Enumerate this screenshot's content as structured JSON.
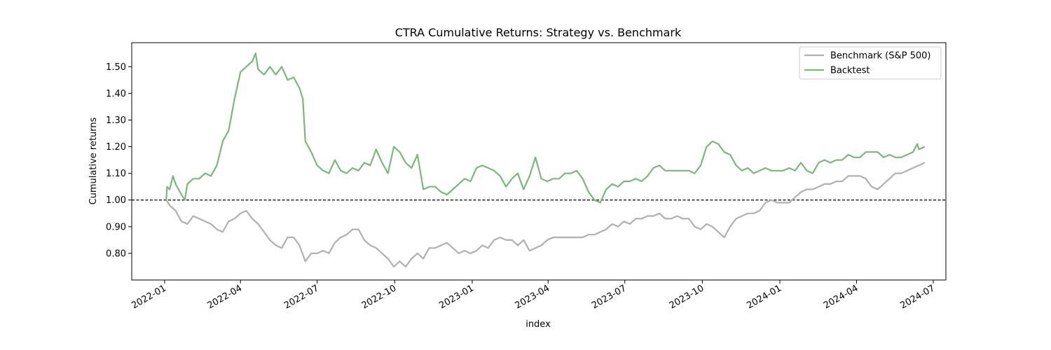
{
  "chart_data": {
    "type": "line",
    "title": "CTRA Cumulative Returns: Strategy vs. Benchmark",
    "xlabel": "index",
    "ylabel": "Cumulative returns",
    "xlim": [
      "2021-11-23",
      "2024-07-16"
    ],
    "ylim": [
      0.7,
      1.59
    ],
    "x_ticks": [
      "2022-01",
      "2022-04",
      "2022-07",
      "2022-10",
      "2023-01",
      "2023-04",
      "2023-07",
      "2023-10",
      "2024-01",
      "2024-04",
      "2024-07"
    ],
    "y_ticks": [
      0.8,
      0.9,
      1.0,
      1.1,
      1.2,
      1.3,
      1.4,
      1.5
    ],
    "y_tick_labels": [
      "0.80",
      "0.90",
      "1.00",
      "1.10",
      "1.20",
      "1.30",
      "1.40",
      "1.50"
    ],
    "grid": false,
    "legend_position": "upper-right",
    "reference_line": {
      "y": 1.0,
      "style": "dashed",
      "color": "#000000"
    },
    "series": [
      {
        "name": "Benchmark (S&P 500)",
        "color": "#b0b0b0",
        "points": [
          [
            "2022-01-03",
            1.0
          ],
          [
            "2022-01-07",
            0.98
          ],
          [
            "2022-01-14",
            0.96
          ],
          [
            "2022-01-21",
            0.92
          ],
          [
            "2022-01-28",
            0.91
          ],
          [
            "2022-02-04",
            0.94
          ],
          [
            "2022-02-11",
            0.93
          ],
          [
            "2022-02-18",
            0.92
          ],
          [
            "2022-02-25",
            0.91
          ],
          [
            "2022-03-04",
            0.89
          ],
          [
            "2022-03-11",
            0.88
          ],
          [
            "2022-03-18",
            0.92
          ],
          [
            "2022-03-25",
            0.93
          ],
          [
            "2022-04-01",
            0.95
          ],
          [
            "2022-04-08",
            0.96
          ],
          [
            "2022-04-15",
            0.93
          ],
          [
            "2022-04-22",
            0.91
          ],
          [
            "2022-04-29",
            0.88
          ],
          [
            "2022-05-06",
            0.85
          ],
          [
            "2022-05-13",
            0.83
          ],
          [
            "2022-05-20",
            0.82
          ],
          [
            "2022-05-27",
            0.86
          ],
          [
            "2022-06-03",
            0.86
          ],
          [
            "2022-06-10",
            0.83
          ],
          [
            "2022-06-17",
            0.77
          ],
          [
            "2022-06-24",
            0.8
          ],
          [
            "2022-07-01",
            0.8
          ],
          [
            "2022-07-08",
            0.81
          ],
          [
            "2022-07-15",
            0.8
          ],
          [
            "2022-07-22",
            0.84
          ],
          [
            "2022-07-29",
            0.86
          ],
          [
            "2022-08-05",
            0.87
          ],
          [
            "2022-08-12",
            0.89
          ],
          [
            "2022-08-19",
            0.89
          ],
          [
            "2022-08-26",
            0.85
          ],
          [
            "2022-09-02",
            0.83
          ],
          [
            "2022-09-09",
            0.82
          ],
          [
            "2022-09-16",
            0.8
          ],
          [
            "2022-09-23",
            0.78
          ],
          [
            "2022-09-30",
            0.75
          ],
          [
            "2022-10-07",
            0.77
          ],
          [
            "2022-10-14",
            0.75
          ],
          [
            "2022-10-21",
            0.78
          ],
          [
            "2022-10-28",
            0.8
          ],
          [
            "2022-11-04",
            0.78
          ],
          [
            "2022-11-11",
            0.82
          ],
          [
            "2022-11-18",
            0.82
          ],
          [
            "2022-11-25",
            0.83
          ],
          [
            "2022-12-02",
            0.84
          ],
          [
            "2022-12-09",
            0.82
          ],
          [
            "2022-12-16",
            0.8
          ],
          [
            "2022-12-23",
            0.81
          ],
          [
            "2022-12-30",
            0.8
          ],
          [
            "2023-01-06",
            0.81
          ],
          [
            "2023-01-13",
            0.83
          ],
          [
            "2023-01-20",
            0.82
          ],
          [
            "2023-01-27",
            0.85
          ],
          [
            "2023-02-03",
            0.86
          ],
          [
            "2023-02-10",
            0.85
          ],
          [
            "2023-02-17",
            0.85
          ],
          [
            "2023-02-24",
            0.83
          ],
          [
            "2023-03-03",
            0.85
          ],
          [
            "2023-03-10",
            0.81
          ],
          [
            "2023-03-17",
            0.82
          ],
          [
            "2023-03-24",
            0.83
          ],
          [
            "2023-03-31",
            0.85
          ],
          [
            "2023-04-07",
            0.86
          ],
          [
            "2023-04-14",
            0.86
          ],
          [
            "2023-04-21",
            0.86
          ],
          [
            "2023-04-28",
            0.86
          ],
          [
            "2023-05-05",
            0.86
          ],
          [
            "2023-05-12",
            0.86
          ],
          [
            "2023-05-19",
            0.87
          ],
          [
            "2023-05-26",
            0.87
          ],
          [
            "2023-06-02",
            0.88
          ],
          [
            "2023-06-09",
            0.89
          ],
          [
            "2023-06-16",
            0.91
          ],
          [
            "2023-06-23",
            0.9
          ],
          [
            "2023-06-30",
            0.92
          ],
          [
            "2023-07-07",
            0.91
          ],
          [
            "2023-07-14",
            0.93
          ],
          [
            "2023-07-21",
            0.93
          ],
          [
            "2023-07-28",
            0.94
          ],
          [
            "2023-08-04",
            0.94
          ],
          [
            "2023-08-11",
            0.95
          ],
          [
            "2023-08-18",
            0.93
          ],
          [
            "2023-08-25",
            0.93
          ],
          [
            "2023-09-01",
            0.94
          ],
          [
            "2023-09-08",
            0.93
          ],
          [
            "2023-09-15",
            0.93
          ],
          [
            "2023-09-22",
            0.9
          ],
          [
            "2023-09-29",
            0.89
          ],
          [
            "2023-10-06",
            0.91
          ],
          [
            "2023-10-13",
            0.9
          ],
          [
            "2023-10-20",
            0.88
          ],
          [
            "2023-10-27",
            0.86
          ],
          [
            "2023-11-03",
            0.9
          ],
          [
            "2023-11-10",
            0.93
          ],
          [
            "2023-11-17",
            0.94
          ],
          [
            "2023-11-24",
            0.95
          ],
          [
            "2023-12-01",
            0.95
          ],
          [
            "2023-12-08",
            0.96
          ],
          [
            "2023-12-15",
            0.99
          ],
          [
            "2023-12-22",
            1.0
          ],
          [
            "2023-12-29",
            0.99
          ],
          [
            "2024-01-05",
            0.99
          ],
          [
            "2024-01-12",
            0.99
          ],
          [
            "2024-01-19",
            1.01
          ],
          [
            "2024-01-26",
            1.03
          ],
          [
            "2024-02-02",
            1.04
          ],
          [
            "2024-02-09",
            1.04
          ],
          [
            "2024-02-16",
            1.05
          ],
          [
            "2024-02-23",
            1.06
          ],
          [
            "2024-03-01",
            1.06
          ],
          [
            "2024-03-08",
            1.07
          ],
          [
            "2024-03-15",
            1.07
          ],
          [
            "2024-03-22",
            1.09
          ],
          [
            "2024-03-29",
            1.09
          ],
          [
            "2024-04-05",
            1.09
          ],
          [
            "2024-04-12",
            1.08
          ],
          [
            "2024-04-19",
            1.05
          ],
          [
            "2024-04-26",
            1.04
          ],
          [
            "2024-05-03",
            1.06
          ],
          [
            "2024-05-10",
            1.08
          ],
          [
            "2024-05-17",
            1.1
          ],
          [
            "2024-05-24",
            1.1
          ],
          [
            "2024-05-31",
            1.11
          ],
          [
            "2024-06-07",
            1.12
          ],
          [
            "2024-06-14",
            1.13
          ],
          [
            "2024-06-21",
            1.14
          ]
        ]
      },
      {
        "name": "Backtest",
        "color": "#7ab87a",
        "points": [
          [
            "2022-01-03",
            1.0
          ],
          [
            "2022-01-04",
            1.05
          ],
          [
            "2022-01-07",
            1.04
          ],
          [
            "2022-01-11",
            1.09
          ],
          [
            "2022-01-14",
            1.06
          ],
          [
            "2022-01-21",
            1.02
          ],
          [
            "2022-01-25",
            1.0
          ],
          [
            "2022-01-28",
            1.06
          ],
          [
            "2022-02-04",
            1.08
          ],
          [
            "2022-02-11",
            1.08
          ],
          [
            "2022-02-18",
            1.1
          ],
          [
            "2022-02-25",
            1.09
          ],
          [
            "2022-03-04",
            1.13
          ],
          [
            "2022-03-11",
            1.22
          ],
          [
            "2022-03-18",
            1.26
          ],
          [
            "2022-03-25",
            1.38
          ],
          [
            "2022-04-01",
            1.48
          ],
          [
            "2022-04-08",
            1.5
          ],
          [
            "2022-04-15",
            1.52
          ],
          [
            "2022-04-19",
            1.55
          ],
          [
            "2022-04-22",
            1.49
          ],
          [
            "2022-04-29",
            1.47
          ],
          [
            "2022-05-06",
            1.5
          ],
          [
            "2022-05-13",
            1.47
          ],
          [
            "2022-05-20",
            1.5
          ],
          [
            "2022-05-27",
            1.45
          ],
          [
            "2022-06-03",
            1.46
          ],
          [
            "2022-06-10",
            1.42
          ],
          [
            "2022-06-14",
            1.38
          ],
          [
            "2022-06-17",
            1.22
          ],
          [
            "2022-06-24",
            1.18
          ],
          [
            "2022-07-01",
            1.13
          ],
          [
            "2022-07-08",
            1.11
          ],
          [
            "2022-07-15",
            1.1
          ],
          [
            "2022-07-22",
            1.15
          ],
          [
            "2022-07-29",
            1.11
          ],
          [
            "2022-08-05",
            1.1
          ],
          [
            "2022-08-12",
            1.12
          ],
          [
            "2022-08-19",
            1.11
          ],
          [
            "2022-08-26",
            1.14
          ],
          [
            "2022-09-02",
            1.13
          ],
          [
            "2022-09-09",
            1.19
          ],
          [
            "2022-09-16",
            1.14
          ],
          [
            "2022-09-23",
            1.1
          ],
          [
            "2022-09-30",
            1.2
          ],
          [
            "2022-10-07",
            1.18
          ],
          [
            "2022-10-14",
            1.14
          ],
          [
            "2022-10-21",
            1.12
          ],
          [
            "2022-10-28",
            1.17
          ],
          [
            "2022-11-04",
            1.04
          ],
          [
            "2022-11-11",
            1.05
          ],
          [
            "2022-11-18",
            1.05
          ],
          [
            "2022-11-25",
            1.03
          ],
          [
            "2022-12-02",
            1.02
          ],
          [
            "2022-12-09",
            1.04
          ],
          [
            "2022-12-16",
            1.06
          ],
          [
            "2022-12-23",
            1.08
          ],
          [
            "2022-12-30",
            1.07
          ],
          [
            "2023-01-06",
            1.12
          ],
          [
            "2023-01-13",
            1.13
          ],
          [
            "2023-01-20",
            1.12
          ],
          [
            "2023-01-27",
            1.11
          ],
          [
            "2023-02-03",
            1.09
          ],
          [
            "2023-02-10",
            1.05
          ],
          [
            "2023-02-17",
            1.08
          ],
          [
            "2023-02-24",
            1.1
          ],
          [
            "2023-03-03",
            1.04
          ],
          [
            "2023-03-10",
            1.09
          ],
          [
            "2023-03-17",
            1.16
          ],
          [
            "2023-03-24",
            1.08
          ],
          [
            "2023-03-31",
            1.07
          ],
          [
            "2023-04-07",
            1.08
          ],
          [
            "2023-04-14",
            1.08
          ],
          [
            "2023-04-21",
            1.1
          ],
          [
            "2023-04-28",
            1.1
          ],
          [
            "2023-05-05",
            1.11
          ],
          [
            "2023-05-12",
            1.08
          ],
          [
            "2023-05-19",
            1.03
          ],
          [
            "2023-05-26",
            1.0
          ],
          [
            "2023-06-02",
            0.99
          ],
          [
            "2023-06-09",
            1.04
          ],
          [
            "2023-06-16",
            1.06
          ],
          [
            "2023-06-23",
            1.05
          ],
          [
            "2023-06-30",
            1.07
          ],
          [
            "2023-07-07",
            1.07
          ],
          [
            "2023-07-14",
            1.08
          ],
          [
            "2023-07-21",
            1.07
          ],
          [
            "2023-07-28",
            1.09
          ],
          [
            "2023-08-04",
            1.12
          ],
          [
            "2023-08-11",
            1.13
          ],
          [
            "2023-08-18",
            1.11
          ],
          [
            "2023-08-25",
            1.11
          ],
          [
            "2023-09-01",
            1.11
          ],
          [
            "2023-09-08",
            1.11
          ],
          [
            "2023-09-15",
            1.11
          ],
          [
            "2023-09-22",
            1.1
          ],
          [
            "2023-09-29",
            1.13
          ],
          [
            "2023-10-06",
            1.2
          ],
          [
            "2023-10-13",
            1.22
          ],
          [
            "2023-10-20",
            1.21
          ],
          [
            "2023-10-27",
            1.18
          ],
          [
            "2023-11-03",
            1.17
          ],
          [
            "2023-11-10",
            1.13
          ],
          [
            "2023-11-17",
            1.11
          ],
          [
            "2023-11-24",
            1.12
          ],
          [
            "2023-12-01",
            1.1
          ],
          [
            "2023-12-08",
            1.11
          ],
          [
            "2023-12-15",
            1.12
          ],
          [
            "2023-12-22",
            1.11
          ],
          [
            "2023-12-29",
            1.11
          ],
          [
            "2024-01-05",
            1.11
          ],
          [
            "2024-01-12",
            1.12
          ],
          [
            "2024-01-19",
            1.11
          ],
          [
            "2024-01-26",
            1.14
          ],
          [
            "2024-02-02",
            1.11
          ],
          [
            "2024-02-09",
            1.1
          ],
          [
            "2024-02-16",
            1.14
          ],
          [
            "2024-02-23",
            1.15
          ],
          [
            "2024-03-01",
            1.14
          ],
          [
            "2024-03-08",
            1.15
          ],
          [
            "2024-03-15",
            1.15
          ],
          [
            "2024-03-22",
            1.17
          ],
          [
            "2024-03-29",
            1.16
          ],
          [
            "2024-04-05",
            1.16
          ],
          [
            "2024-04-12",
            1.18
          ],
          [
            "2024-04-19",
            1.18
          ],
          [
            "2024-04-26",
            1.18
          ],
          [
            "2024-05-03",
            1.16
          ],
          [
            "2024-05-10",
            1.17
          ],
          [
            "2024-05-17",
            1.16
          ],
          [
            "2024-05-24",
            1.16
          ],
          [
            "2024-05-31",
            1.17
          ],
          [
            "2024-06-07",
            1.18
          ],
          [
            "2024-06-12",
            1.21
          ],
          [
            "2024-06-14",
            1.19
          ],
          [
            "2024-06-21",
            1.2
          ]
        ]
      }
    ]
  }
}
